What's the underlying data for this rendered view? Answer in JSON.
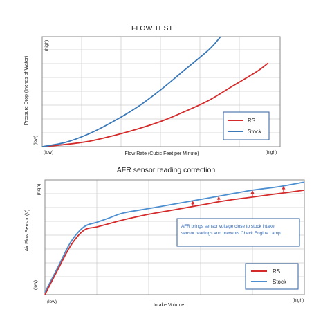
{
  "chart_data": [
    {
      "type": "line",
      "title": "FLOW TEST",
      "xlabel": "Flow Rate (Cubic Feet per Minute)",
      "ylabel": "Pressure Drop (Inches of Water)",
      "x_tick_labels": [
        "(low)",
        "(high)"
      ],
      "y_tick_labels": [
        "(low)",
        "(high)"
      ],
      "xlim": [
        0,
        100
      ],
      "ylim": [
        0,
        100
      ],
      "grid": true,
      "legend_position": "bottom-right",
      "series": [
        {
          "name": "RS",
          "color": "#d42a2a",
          "x": [
            0,
            10,
            20,
            30,
            40,
            50,
            60,
            70,
            80,
            90,
            95
          ],
          "y": [
            0,
            2,
            5,
            10,
            16,
            23,
            32,
            42,
            55,
            68,
            76
          ]
        },
        {
          "name": "Stock",
          "color": "#3a78b8",
          "x": [
            0,
            10,
            20,
            30,
            40,
            50,
            60,
            70,
            75
          ],
          "y": [
            0,
            4,
            12,
            23,
            36,
            52,
            70,
            88,
            100
          ]
        }
      ]
    },
    {
      "type": "line",
      "title": "AFR sensor reading correction",
      "xlabel": "Intake Volume",
      "ylabel": "Air Flow Sensor (V)",
      "x_tick_labels": [
        "(low)",
        "(high)"
      ],
      "y_tick_labels": [
        "(low)",
        "(high)"
      ],
      "xlim": [
        0,
        100
      ],
      "ylim": [
        0,
        100
      ],
      "grid": true,
      "legend_position": "bottom-right",
      "annotation": "AFR brings sensor voltage close to stock intake sensor readings and prevents Check Engine Lamp.",
      "series": [
        {
          "name": "RS",
          "color": "#d42a2a",
          "x": [
            0,
            5,
            10,
            15,
            20,
            25,
            30,
            40,
            50,
            60,
            70,
            80,
            90,
            100
          ],
          "y": [
            0,
            22,
            43,
            56,
            59,
            62,
            65,
            70,
            74,
            78,
            82,
            85,
            88,
            91
          ]
        },
        {
          "name": "Stock",
          "color": "#4b8fd1",
          "x": [
            0,
            5,
            10,
            15,
            20,
            25,
            30,
            40,
            50,
            60,
            70,
            80,
            90,
            100
          ],
          "y": [
            2,
            24,
            46,
            59,
            63,
            67,
            71,
            75,
            79,
            83,
            87,
            91,
            94,
            98
          ]
        }
      ],
      "correction_arrows_x": [
        57,
        67,
        80,
        92
      ]
    }
  ]
}
